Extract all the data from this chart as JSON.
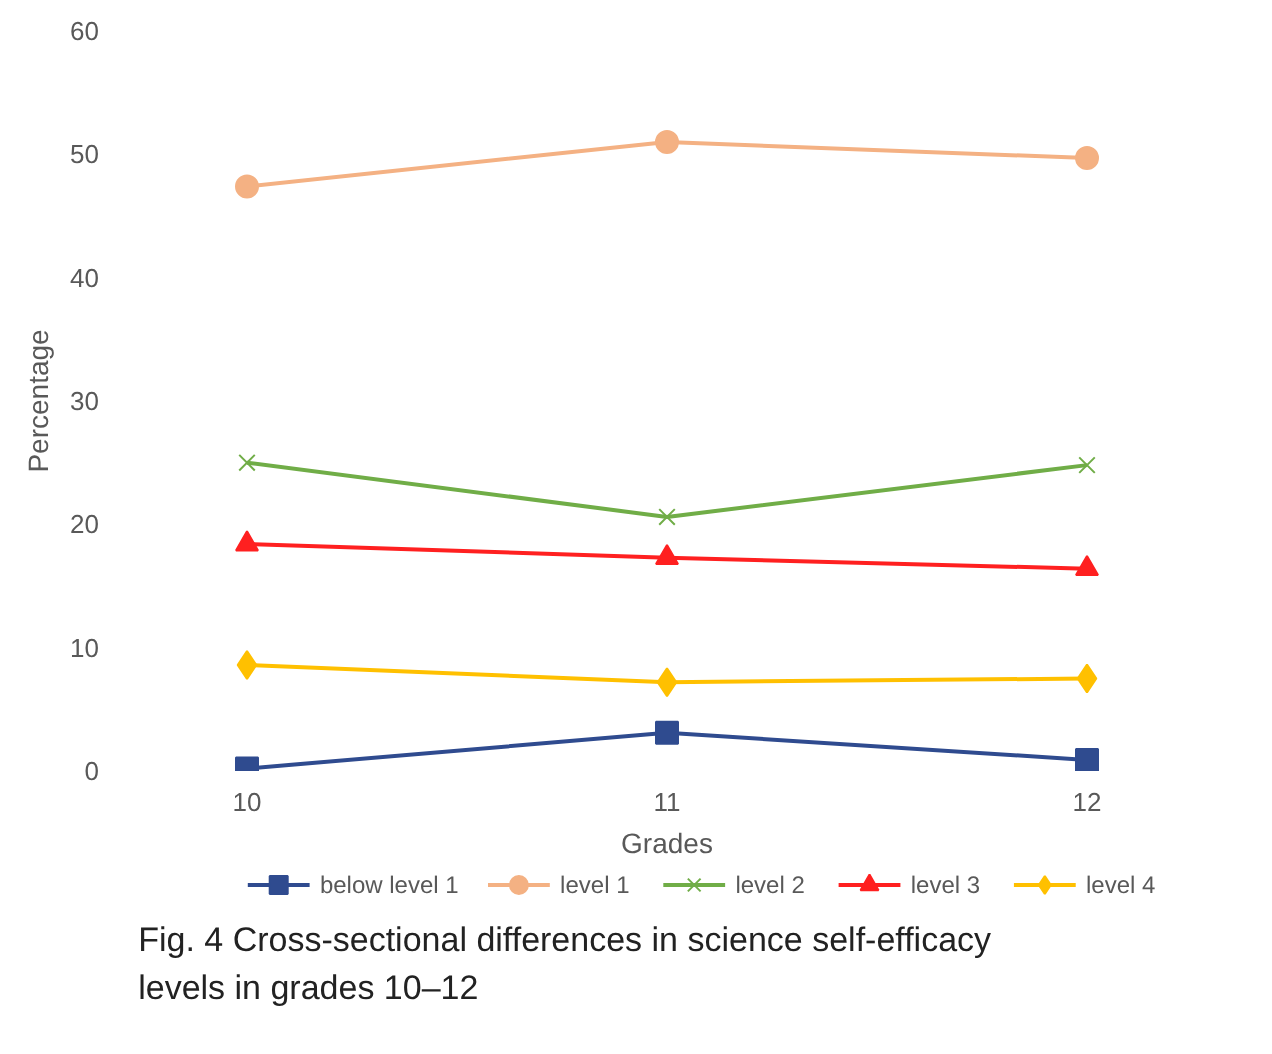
{
  "chart_data": {
    "type": "line",
    "xlabel": "Grades",
    "ylabel": "Percentage",
    "categories": [
      "10",
      "11",
      "12"
    ],
    "series": [
      {
        "name": "below level 1",
        "color": "#2f4b8f",
        "marker": "square",
        "values": [
          0.2,
          3.1,
          0.9
        ]
      },
      {
        "name": "level 1",
        "color": "#f4b183",
        "marker": "circle",
        "values": [
          47.4,
          51.0,
          49.7
        ]
      },
      {
        "name": "level 2",
        "color": "#70ad47",
        "marker": "cross",
        "values": [
          25.0,
          20.6,
          24.8
        ]
      },
      {
        "name": "level 3",
        "color": "#ff2020",
        "marker": "triangle",
        "values": [
          18.4,
          17.3,
          16.4
        ]
      },
      {
        "name": "level 4",
        "color": "#ffc000",
        "marker": "diamond",
        "values": [
          8.6,
          7.2,
          7.5
        ]
      }
    ],
    "ylim": [
      0,
      60
    ],
    "yticks": [
      0,
      10,
      20,
      30,
      40,
      50,
      60
    ],
    "grid": false,
    "legend": "bottom",
    "annotations": [
      "Fig. 4  Cross-sectional differences in science self-efficacy levels in grades 10–12"
    ]
  }
}
